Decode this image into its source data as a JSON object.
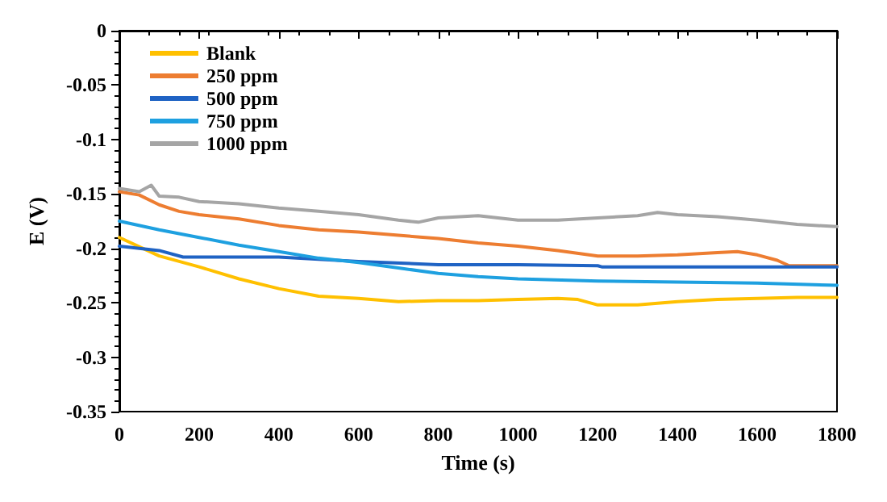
{
  "chart_data": {
    "type": "line",
    "xlabel": "Time (s)",
    "ylabel": "E (V)",
    "xlim": [
      0,
      1800
    ],
    "xticks": [
      0,
      200,
      400,
      600,
      800,
      1000,
      1200,
      1400,
      1600,
      1800
    ],
    "ylim": [
      -0.35,
      0
    ],
    "yticks": [
      -0.35,
      -0.3,
      -0.25,
      -0.2,
      -0.15,
      -0.1,
      -0.05,
      0
    ],
    "grid": false,
    "legend": "top left",
    "marker": "none",
    "line_style": "solid",
    "series": [
      {
        "name": "Blank",
        "color": "#ffc000",
        "x": [
          0,
          100,
          200,
          300,
          400,
          500,
          600,
          700,
          800,
          900,
          1000,
          1100,
          1150,
          1200,
          1300,
          1400,
          1500,
          1600,
          1700,
          1800
        ],
        "values": [
          -0.19,
          -0.207,
          -0.217,
          -0.228,
          -0.237,
          -0.244,
          -0.246,
          -0.249,
          -0.248,
          -0.248,
          -0.247,
          -0.246,
          -0.247,
          -0.252,
          -0.252,
          -0.249,
          -0.247,
          -0.246,
          -0.245,
          -0.245
        ]
      },
      {
        "name": "250 ppm",
        "color": "#ed7d31",
        "x": [
          0,
          50,
          100,
          150,
          200,
          300,
          400,
          500,
          600,
          700,
          800,
          900,
          1000,
          1100,
          1200,
          1300,
          1400,
          1500,
          1550,
          1600,
          1650,
          1680,
          1800
        ],
        "values": [
          -0.148,
          -0.151,
          -0.16,
          -0.166,
          -0.169,
          -0.173,
          -0.179,
          -0.183,
          -0.185,
          -0.188,
          -0.191,
          -0.195,
          -0.198,
          -0.202,
          -0.207,
          -0.207,
          -0.206,
          -0.204,
          -0.203,
          -0.206,
          -0.211,
          -0.216,
          -0.216
        ]
      },
      {
        "name": "500 ppm",
        "color": "#1f63c4",
        "x": [
          0,
          100,
          160,
          400,
          600,
          800,
          1000,
          1200,
          1210,
          1800
        ],
        "values": [
          -0.198,
          -0.202,
          -0.208,
          -0.208,
          -0.212,
          -0.215,
          -0.215,
          -0.216,
          -0.217,
          -0.217
        ]
      },
      {
        "name": "750 ppm",
        "color": "#1ea0e0",
        "x": [
          0,
          100,
          200,
          300,
          400,
          500,
          600,
          700,
          800,
          900,
          1000,
          1200,
          1400,
          1600,
          1800
        ],
        "values": [
          -0.175,
          -0.183,
          -0.19,
          -0.197,
          -0.203,
          -0.209,
          -0.213,
          -0.218,
          -0.223,
          -0.226,
          -0.228,
          -0.23,
          -0.231,
          -0.232,
          -0.234
        ]
      },
      {
        "name": "1000 ppm",
        "color": "#a5a5a5",
        "x": [
          0,
          50,
          80,
          100,
          150,
          200,
          300,
          400,
          500,
          600,
          700,
          750,
          800,
          900,
          1000,
          1100,
          1200,
          1300,
          1350,
          1400,
          1500,
          1600,
          1700,
          1800
        ],
        "values": [
          -0.145,
          -0.148,
          -0.142,
          -0.152,
          -0.153,
          -0.157,
          -0.159,
          -0.163,
          -0.166,
          -0.169,
          -0.174,
          -0.176,
          -0.172,
          -0.17,
          -0.174,
          -0.174,
          -0.172,
          -0.17,
          -0.167,
          -0.169,
          -0.171,
          -0.174,
          -0.178,
          -0.18
        ]
      }
    ]
  }
}
